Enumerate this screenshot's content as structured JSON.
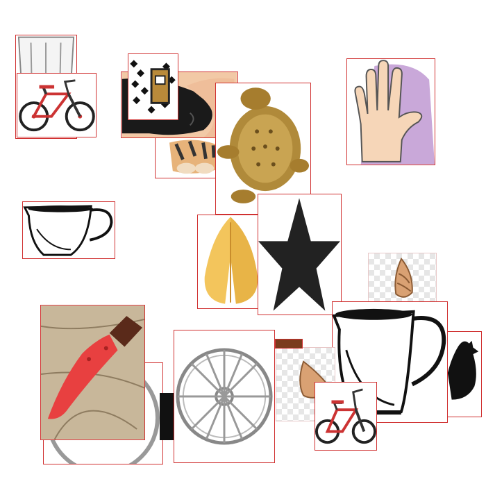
{
  "collage": {
    "description_items": [
      "glass-icon",
      "bicycle-icon",
      "cow-icon",
      "ornament-icon",
      "tiger-icon",
      "tortoise-icon",
      "hand-icon",
      "teapot-icon",
      "namaste-icon",
      "star-icon",
      "shell-icon",
      "jug-icon",
      "kukri-knife-icon",
      "wheel-icon",
      "chicken-icon"
    ],
    "colors": {
      "border": "#d03030",
      "star": "#222222",
      "knife_blade": "#e84040",
      "hand_bg": "#c9a8d9",
      "tortoise": "#b08a3a",
      "namaste": "#f3c55c"
    }
  }
}
